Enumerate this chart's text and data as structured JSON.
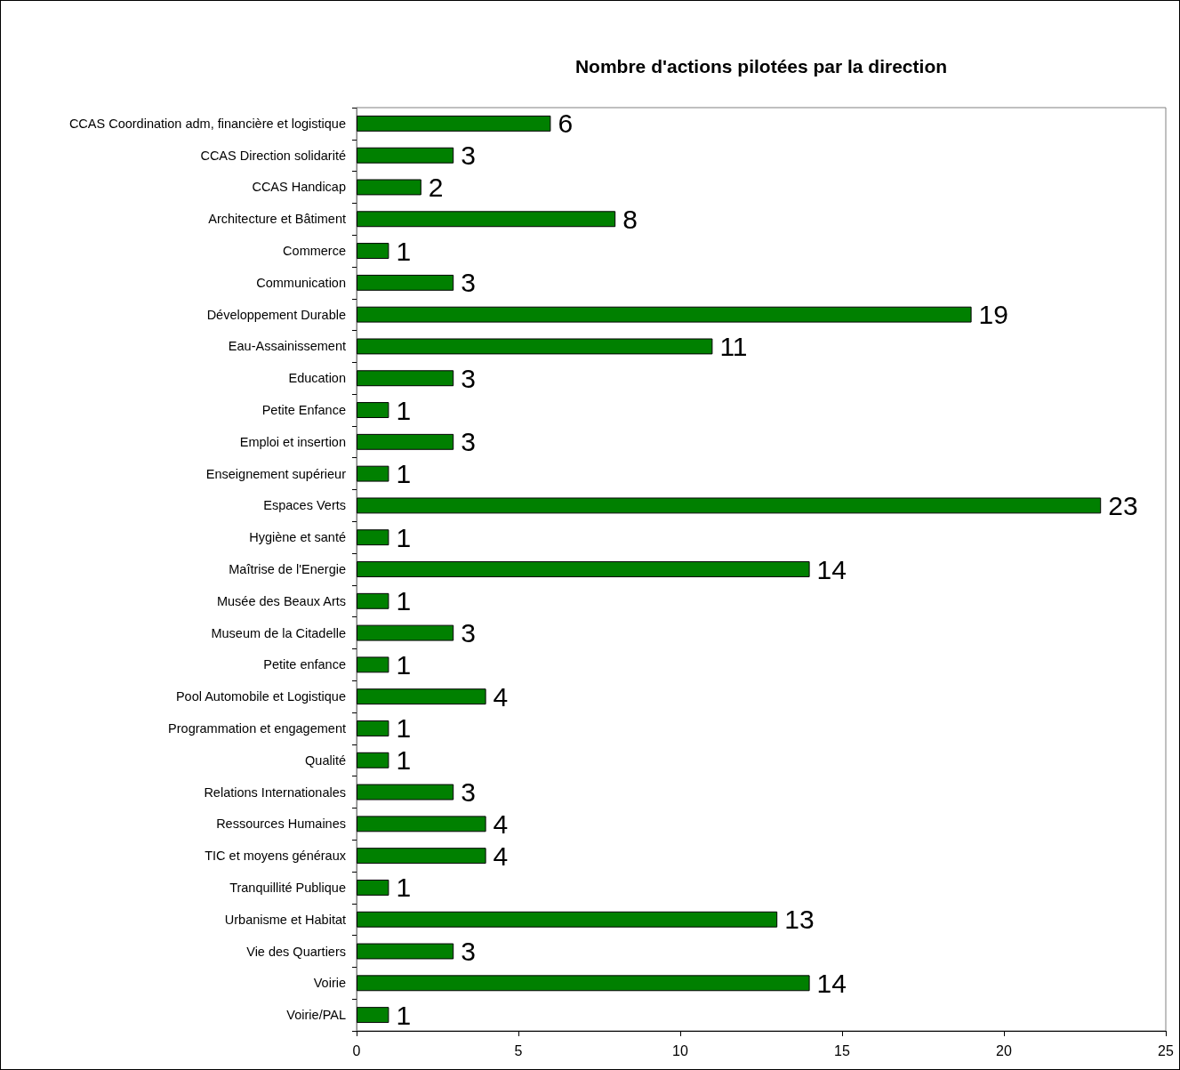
{
  "chart_data": {
    "type": "bar",
    "orientation": "horizontal",
    "title": "Nombre d'actions pilotées par la direction",
    "categories": [
      "CCAS Coordination adm, financière et logistique",
      "CCAS Direction solidarité",
      "CCAS Handicap",
      "Architecture et Bâtiment",
      "Commerce",
      "Communication",
      "Développement Durable",
      "Eau-Assainissement",
      "Education",
      "Petite Enfance",
      "Emploi et insertion",
      "Enseignement supérieur",
      "Espaces Verts",
      "Hygiène et santé",
      "Maîtrise de l'Energie",
      "Musée des Beaux Arts",
      "Museum de la Citadelle",
      "Petite enfance",
      "Pool Automobile et Logistique",
      "Programmation et engagement",
      "Qualité",
      "Relations Internationales",
      "Ressources Humaines",
      "TIC et moyens généraux",
      "Tranquillité Publique",
      "Urbanisme et Habitat",
      "Vie des Quartiers",
      "Voirie",
      "Voirie/PAL"
    ],
    "values": [
      6,
      3,
      2,
      8,
      1,
      3,
      19,
      11,
      3,
      1,
      3,
      1,
      23,
      1,
      14,
      1,
      3,
      1,
      4,
      1,
      1,
      3,
      4,
      4,
      1,
      13,
      3,
      14,
      1
    ],
    "color": "#008000",
    "xlim": [
      0,
      25
    ],
    "xticks": [
      0,
      5,
      10,
      15,
      20,
      25
    ],
    "data_labels": true,
    "grid": false
  }
}
